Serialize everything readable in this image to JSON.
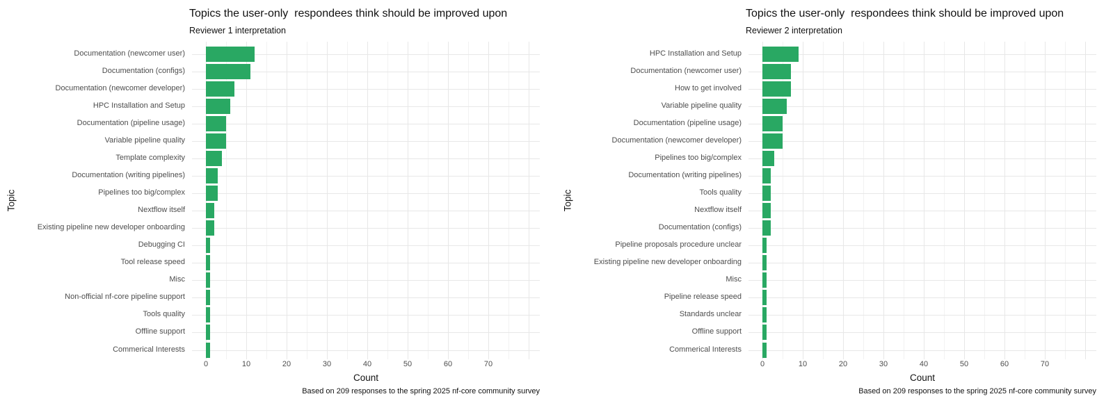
{
  "colors": {
    "bar": "#29a863",
    "grid_major": "#e7e7e7",
    "grid_minor": "#f2f2f2",
    "axis_text": "#4d4d4d",
    "text": "#111111"
  },
  "chart_data": [
    {
      "type": "bar",
      "orientation": "horizontal",
      "title": "Topics the user-only  respondees think should be improved upon",
      "subtitle": "Reviewer 1 interpretation",
      "xlabel": "Count",
      "ylabel": "Topic",
      "caption": "Based on 209 responses to the spring 2025 nf-core community survey",
      "x_ticks": [
        0,
        10,
        20,
        30,
        40,
        50,
        60,
        70
      ],
      "xlim": [
        0,
        80
      ],
      "grid": true,
      "legend": false,
      "categories": [
        "Documentation (newcomer user)",
        "Documentation (configs)",
        "Documentation (newcomer developer)",
        "HPC Installation and Setup",
        "Documentation (pipeline usage)",
        "Variable pipeline quality",
        "Template complexity",
        "Documentation (writing pipelines)",
        "Pipelines too big/complex",
        "Nextflow itself",
        "Existing pipeline new developer onboarding",
        "Debugging CI",
        "Tool release speed",
        "Misc",
        "Non-official nf-core pipeline support",
        "Tools quality",
        "Offline support",
        "Commerical Interests"
      ],
      "values": [
        12,
        11,
        7,
        6,
        5,
        5,
        4,
        3,
        3,
        2,
        2,
        1,
        1,
        1,
        1,
        1,
        1,
        1
      ]
    },
    {
      "type": "bar",
      "orientation": "horizontal",
      "title": "Topics the user-only  respondees think should be improved upon",
      "subtitle": "Reviewer 2 interpretation",
      "xlabel": "Count",
      "ylabel": "Topic",
      "caption": "Based on 209 responses to the spring 2025 nf-core community survey",
      "x_ticks": [
        0,
        10,
        20,
        30,
        40,
        50,
        60,
        70
      ],
      "xlim": [
        0,
        80
      ],
      "grid": true,
      "legend": false,
      "categories": [
        "HPC Installation and Setup",
        "Documentation (newcomer user)",
        "How to get involved",
        "Variable pipeline quality",
        "Documentation (pipeline usage)",
        "Documentation (newcomer developer)",
        "Pipelines too big/complex",
        "Documentation (writing pipelines)",
        "Tools quality",
        "Nextflow itself",
        "Documentation (configs)",
        "Pipeline proposals procedure unclear",
        "Existing pipeline new developer onboarding",
        "Misc",
        "Pipeline release speed",
        "Standards unclear",
        "Offline support",
        "Commerical Interests"
      ],
      "values": [
        9,
        7,
        7,
        6,
        5,
        5,
        3,
        2,
        2,
        2,
        2,
        1,
        1,
        1,
        1,
        1,
        1,
        1
      ]
    }
  ]
}
